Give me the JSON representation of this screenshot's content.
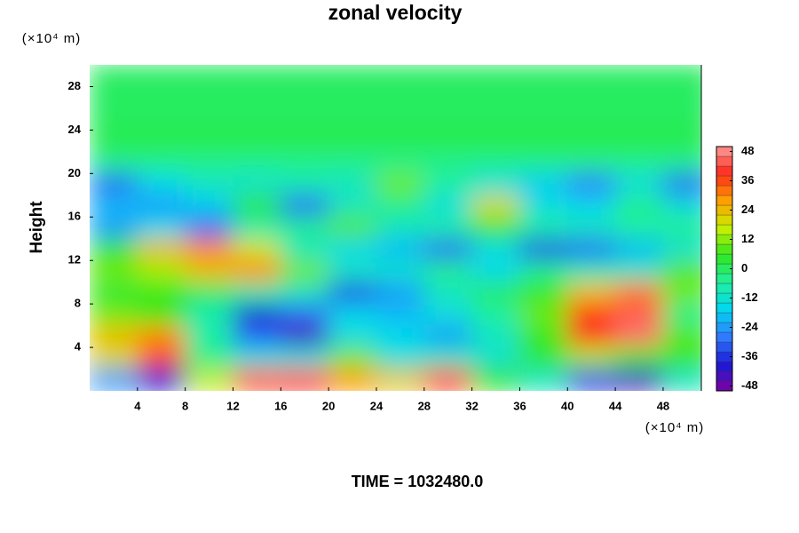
{
  "chart_data": {
    "type": "heatmap",
    "title": "zonal velocity",
    "ylabel": "Height",
    "y_unit": "(×10⁴ m)",
    "x_unit": "(×10⁴ m)",
    "annotation": "TIME = 1032480.0",
    "x": [
      2,
      6,
      10,
      14,
      18,
      22,
      26,
      30,
      34,
      38,
      42,
      46,
      50
    ],
    "y": [
      29,
      27,
      25,
      23,
      21,
      19,
      17,
      15,
      13,
      11,
      9,
      7,
      5,
      3,
      1
    ],
    "z": [
      [
        0,
        0,
        0,
        0,
        0,
        0,
        0,
        0,
        0,
        0,
        0,
        0,
        0
      ],
      [
        0,
        0,
        0,
        0,
        0,
        0,
        0,
        0,
        0,
        0,
        0,
        0,
        0
      ],
      [
        0,
        0,
        0,
        0,
        0,
        0,
        0,
        0,
        0,
        0,
        0,
        0,
        0
      ],
      [
        2,
        2,
        2,
        2,
        2,
        2,
        2,
        2,
        2,
        2,
        2,
        2,
        2
      ],
      [
        -4,
        -4,
        -4,
        -4,
        -4,
        -4,
        -4,
        -4,
        -4,
        -4,
        -4,
        -4,
        -4
      ],
      [
        -30,
        -16,
        -10,
        -12,
        -8,
        -10,
        10,
        -6,
        -14,
        -18,
        -28,
        -14,
        -30
      ],
      [
        -20,
        -24,
        -18,
        5,
        -30,
        -10,
        -4,
        -14,
        20,
        -14,
        -16,
        -4,
        -14
      ],
      [
        -24,
        -16,
        -30,
        -8,
        -4,
        8,
        -10,
        -6,
        4,
        -6,
        -10,
        -6,
        -4
      ],
      [
        6,
        24,
        30,
        18,
        -10,
        -16,
        -20,
        -30,
        -14,
        -34,
        -30,
        -20,
        -12
      ],
      [
        10,
        14,
        24,
        30,
        10,
        -10,
        -12,
        -4,
        -16,
        -4,
        -8,
        -10,
        8
      ],
      [
        4,
        6,
        0,
        -6,
        -10,
        -34,
        -24,
        -10,
        0,
        6,
        24,
        32,
        10
      ],
      [
        10,
        6,
        -8,
        -40,
        -30,
        -16,
        -20,
        -14,
        -6,
        10,
        38,
        44,
        -4
      ],
      [
        24,
        30,
        -6,
        -30,
        -44,
        -14,
        -16,
        -24,
        -10,
        6,
        40,
        46,
        8
      ],
      [
        20,
        36,
        -4,
        -14,
        -14,
        10,
        -14,
        -10,
        -12,
        4,
        14,
        6,
        6
      ],
      [
        -24,
        -40,
        16,
        36,
        40,
        28,
        22,
        40,
        6,
        -10,
        -36,
        -44,
        -10
      ]
    ],
    "xlim": [
      0,
      51.2
    ],
    "ylim": [
      0,
      30
    ],
    "xticks": [
      4,
      8,
      12,
      16,
      20,
      24,
      28,
      32,
      36,
      40,
      44,
      48
    ],
    "yticks": [
      4,
      8,
      12,
      16,
      20,
      24,
      28
    ],
    "clim": [
      -50,
      50
    ],
    "cticks": [
      -48,
      -36,
      -24,
      -12,
      0,
      12,
      24,
      36,
      48
    ],
    "colormap": [
      "#8000a0",
      "#1a1ad8",
      "#2f7cff",
      "#00d8f0",
      "#20f0a0",
      "#30e820",
      "#c8f000",
      "#ffa000",
      "#ff2a1a",
      "#ff9a9a"
    ]
  }
}
